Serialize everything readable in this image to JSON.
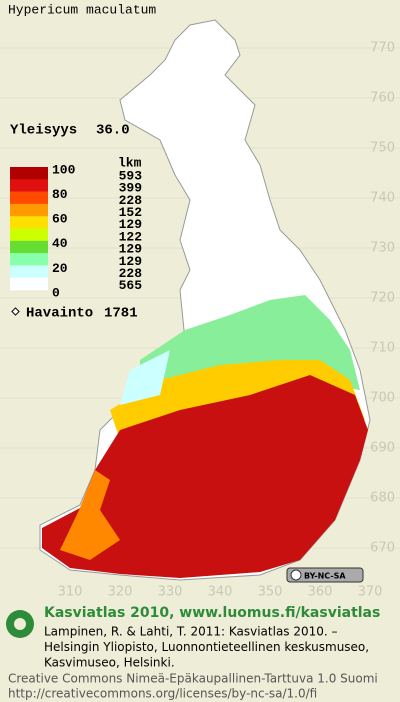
{
  "title": "Hypericum maculatum",
  "frequency": {
    "label": "Yleisyys",
    "value": "36.0"
  },
  "legend": {
    "scale_labels": [
      "100",
      "80",
      "60",
      "40",
      "20",
      "0"
    ],
    "count_header": "lkm",
    "counts": [
      "593",
      "399",
      "228",
      "152",
      "129",
      "122",
      "129",
      "129",
      "228",
      "565"
    ],
    "colors": [
      "#b00000",
      "#e01010",
      "#ff4a00",
      "#ff9a00",
      "#ffe000",
      "#ccff00",
      "#66dd33",
      "#88ffaa",
      "#ccffff",
      "#ffffff"
    ]
  },
  "observations": {
    "label": "Havainto",
    "value": "1781"
  },
  "y_axis_labels": [
    "770",
    "760",
    "750",
    "740",
    "730",
    "720",
    "710",
    "700",
    "690",
    "680",
    "670"
  ],
  "x_axis_labels": [
    "310",
    "320",
    "330",
    "340",
    "350",
    "360",
    "370"
  ],
  "license_badge": "BY-NC-SA",
  "footer": {
    "heading": "Kasviatlas 2010, www.luomus.fi/kasviatlas",
    "citation": [
      "Lampinen, R. & Lahti, T. 2011: Kasviatlas 2010. –",
      "Helsingin Yliopisto, Luonnontieteellinen keskusmuseo,",
      "Kasvimuseo, Helsinki."
    ],
    "license": [
      "Creative Commons Nimeä-Epäkaupallinen-Tarttuva 1.0 Suomi",
      "http://creativecommons.org/licenses/by-nc-sa/1.0/fi"
    ]
  }
}
